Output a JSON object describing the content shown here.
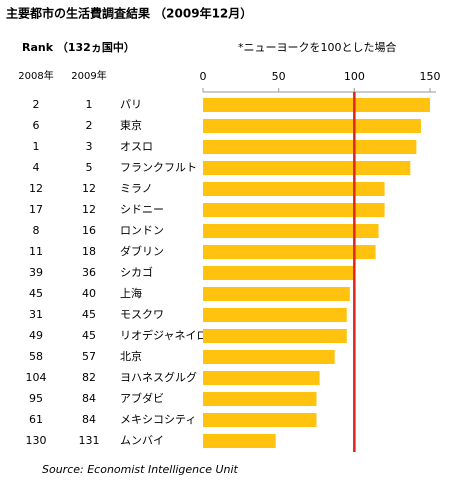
{
  "chart_data": {
    "type": "bar",
    "title": "主要都市の生活費調査結果 （2009年12月）",
    "rank_label": "Rank （132ヵ国中）",
    "note": "*ニューヨークを100とした場合",
    "source": "Source: Economist Intelligence Unit",
    "column_headers": [
      "2008年",
      "2009年"
    ],
    "rank_2008": [
      "2",
      "6",
      "1",
      "4",
      "12",
      "17",
      "8",
      "11",
      "39",
      "45",
      "31",
      "49",
      "58",
      "104",
      "95",
      "61",
      "130"
    ],
    "rank_2009": [
      "1",
      "2",
      "3",
      "5",
      "12",
      "12",
      "16",
      "18",
      "36",
      "40",
      "45",
      "45",
      "57",
      "82",
      "84",
      "84",
      "131"
    ],
    "categories": [
      "パリ",
      "東京",
      "オスロ",
      "フランクフルト",
      "ミラノ",
      "シドニー",
      "ロンドン",
      "ダブリン",
      "シカゴ",
      "上海",
      "モスクワ",
      "リオデジャネイロ",
      "北京",
      "ヨハネスグルグ",
      "アブダビ",
      "メキシコシティ",
      "ムンバイ"
    ],
    "values": [
      150,
      144,
      141,
      137,
      120,
      120,
      116,
      114,
      100,
      97,
      95,
      95,
      87,
      77,
      75,
      75,
      48
    ],
    "color": "#ffc20e",
    "xlim": [
      0,
      150
    ],
    "xticks": [
      0,
      50,
      100,
      150
    ],
    "reference_line": {
      "value": 100,
      "color": "#e2231a"
    }
  }
}
